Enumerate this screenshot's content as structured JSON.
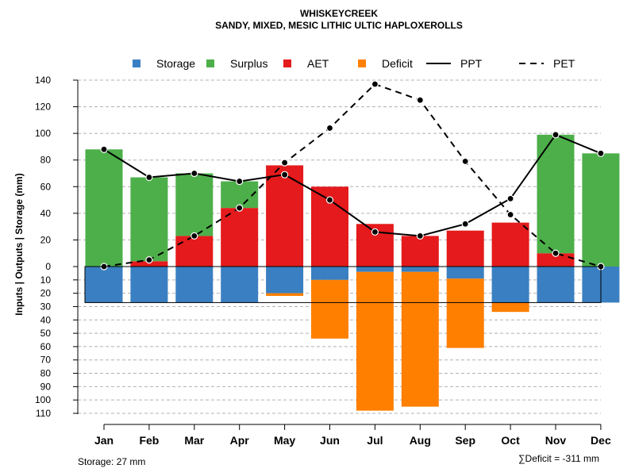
{
  "chart_data": {
    "type": "bar",
    "title": "WHISKEYCREEK",
    "subtitle": "SANDY, MIXED, MESIC LITHIC ULTIC HAPLOXEROLLS",
    "ylabel": "Inputs | Outputs | Storage    (mm)",
    "categories": [
      "Jan",
      "Feb",
      "Mar",
      "Apr",
      "May",
      "Jun",
      "Jul",
      "Aug",
      "Sep",
      "Oct",
      "Nov",
      "Dec"
    ],
    "ylim_upper": [
      0,
      140
    ],
    "ylim_lower": [
      0,
      110
    ],
    "yticks_upper": [
      "140",
      "120",
      "100",
      "80",
      "60",
      "40",
      "20",
      "0"
    ],
    "yticks_lower": [
      "10",
      "20",
      "30",
      "40",
      "50",
      "60",
      "70",
      "80",
      "90",
      "100",
      "110"
    ],
    "tick_values_upper": [
      140,
      120,
      100,
      80,
      60,
      40,
      20,
      0
    ],
    "tick_values_lower": [
      10,
      20,
      30,
      40,
      50,
      60,
      70,
      80,
      90,
      100,
      110
    ],
    "series": [
      {
        "name": "Storage",
        "values": [
          27,
          27,
          27,
          27,
          20,
          10,
          4,
          4,
          9,
          27,
          27,
          27
        ]
      },
      {
        "name": "Surplus",
        "values": [
          88,
          63,
          47,
          20,
          0,
          0,
          0,
          0,
          0,
          0,
          89,
          85
        ]
      },
      {
        "name": "AET",
        "values": [
          0,
          4,
          23,
          44,
          76,
          60,
          32,
          23,
          27,
          33,
          10,
          0
        ]
      },
      {
        "name": "Deficit",
        "values": [
          0,
          0,
          0,
          0,
          2,
          44,
          104,
          101,
          52,
          7,
          0,
          0
        ]
      },
      {
        "name": "PPT",
        "values": [
          88,
          67,
          70,
          64,
          69,
          50,
          26,
          23,
          32,
          51,
          99,
          85
        ]
      },
      {
        "name": "PET",
        "values": [
          0,
          5,
          23,
          44,
          78,
          104,
          137,
          125,
          79,
          39,
          10,
          0
        ]
      }
    ],
    "colors": {
      "Storage": "#3A7FC1",
      "Surplus": "#4DAF4A",
      "AET": "#E41A1C",
      "Deficit": "#FF7F00",
      "PPT": "#000000",
      "PET": "#000000"
    },
    "legend": [
      {
        "label": "Storage",
        "type": "box"
      },
      {
        "label": "Surplus",
        "type": "box"
      },
      {
        "label": "AET",
        "type": "box"
      },
      {
        "label": "Deficit",
        "type": "box"
      },
      {
        "label": "PPT",
        "type": "solid-line"
      },
      {
        "label": "PET",
        "type": "dashed-line"
      }
    ],
    "legend_position": "top",
    "storage_note": "Storage: 27 mm",
    "deficit_note": "∑Deficit = -311 mm"
  }
}
